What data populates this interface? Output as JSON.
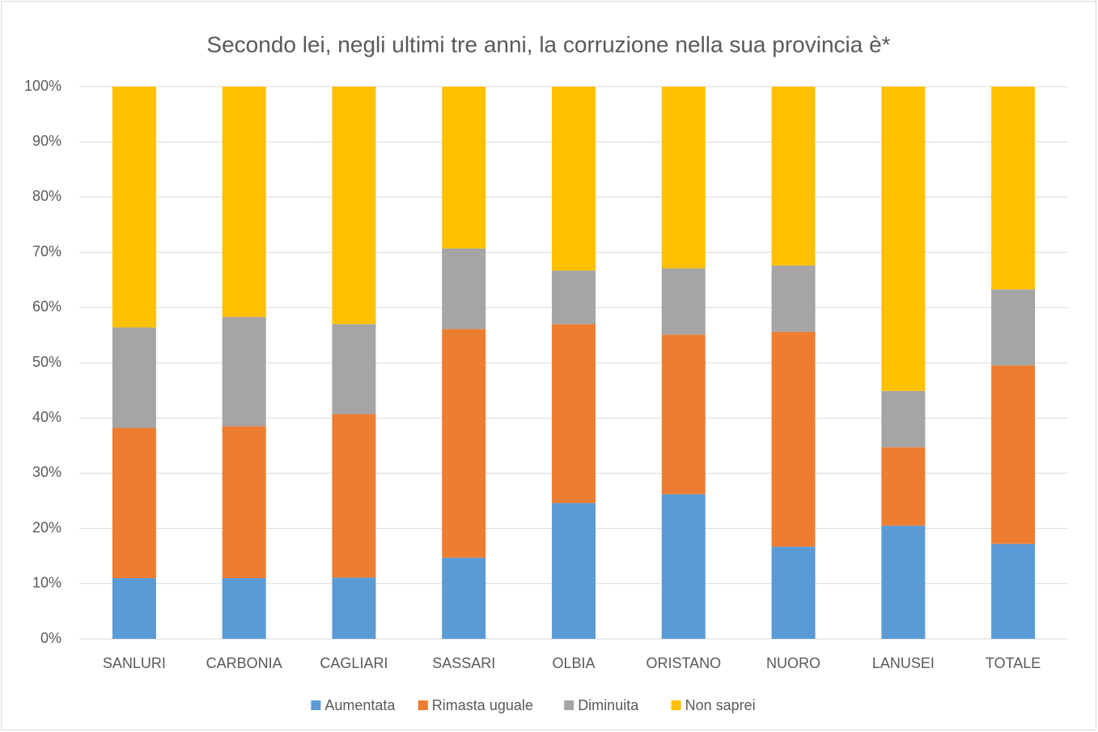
{
  "chart_data": {
    "type": "stacked_bar",
    "title": "Secondo lei, negli ultimi tre anni, la corruzione nella sua provincia è*",
    "categories": [
      "SANLURI",
      "CARBONIA",
      "CAGLIARI",
      "SASSARI",
      "OLBIA",
      "ORISTANO",
      "NUORO",
      "LANUSEI",
      "TOTALE"
    ],
    "series": [
      {
        "name": "Aumentata",
        "color": "#5b9bd5",
        "values": [
          11.0,
          11.0,
          11.1,
          14.7,
          24.6,
          26.2,
          16.7,
          20.5,
          17.2
        ]
      },
      {
        "name": "Rimasta uguale",
        "color": "#ed7d31",
        "values": [
          27.2,
          27.5,
          29.6,
          41.4,
          32.4,
          28.9,
          38.9,
          14.2,
          32.3
        ]
      },
      {
        "name": "Diminuita",
        "color": "#a5a5a5",
        "values": [
          18.2,
          19.8,
          16.3,
          14.6,
          9.7,
          12.0,
          12.0,
          10.2,
          13.8
        ]
      },
      {
        "name": "Non saprei",
        "color": "#ffc000",
        "values": [
          43.6,
          41.7,
          43.0,
          29.3,
          33.3,
          32.9,
          32.4,
          55.1,
          36.7
        ]
      }
    ],
    "ylim": [
      0,
      100
    ],
    "yticks": [
      {
        "value": 0,
        "label": "0%"
      },
      {
        "value": 10,
        "label": "10%"
      },
      {
        "value": 20,
        "label": "20%"
      },
      {
        "value": 30,
        "label": "30%"
      },
      {
        "value": 40,
        "label": "40%"
      },
      {
        "value": 50,
        "label": "50%"
      },
      {
        "value": 60,
        "label": "60%"
      },
      {
        "value": 70,
        "label": "70%"
      },
      {
        "value": 80,
        "label": "80%"
      },
      {
        "value": 90,
        "label": "90%"
      },
      {
        "value": 100,
        "label": "100%"
      }
    ],
    "grid": true,
    "legend": "bottom"
  }
}
